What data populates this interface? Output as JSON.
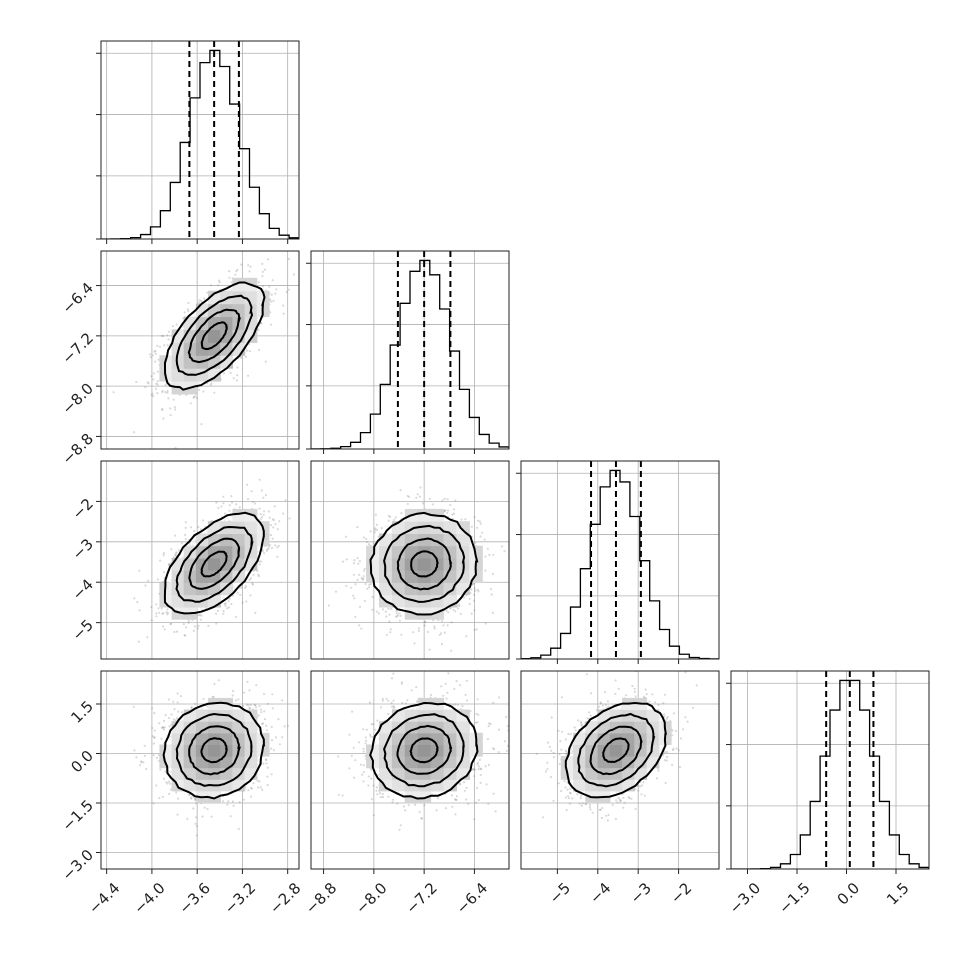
{
  "chart_data": {
    "type": "corner",
    "parameters": [
      {
        "mean": -3.45,
        "sd": 0.22,
        "ticks": [
          -4.4,
          -4.0,
          -3.6,
          -3.2,
          -2.8
        ],
        "tick_labels": [
          "−4.4",
          "−4.0",
          "−3.6",
          "−3.2",
          "−2.8"
        ],
        "range": [
          -4.45,
          -2.7
        ]
      },
      {
        "mean": -7.2,
        "sd": 0.42,
        "ticks": [
          -8.8,
          -8.0,
          -7.2,
          -6.4
        ],
        "tick_labels": [
          "−8.8",
          "−8.0",
          "−7.2",
          "−6.4"
        ],
        "range": [
          -9.0,
          -5.85
        ]
      },
      {
        "mean": -3.55,
        "sd": 0.62,
        "ticks": [
          -5,
          -4,
          -3,
          -2
        ],
        "tick_labels": [
          "−5",
          "−4",
          "−3",
          "−2"
        ],
        "range": [
          -5.9,
          -1.0
        ]
      },
      {
        "mean": 0.1,
        "sd": 0.72,
        "ticks": [
          -3.0,
          -1.5,
          0.0,
          1.5
        ],
        "tick_labels": [
          "−3.0",
          "−1.5",
          "0.0",
          "1.5"
        ],
        "range": [
          -3.5,
          2.5
        ]
      }
    ],
    "quantiles": [
      0.16,
      0.5,
      0.84
    ],
    "histogram_bins": 20,
    "correlations": [
      {
        "pair": [
          0,
          1
        ],
        "rho": 0.62
      },
      {
        "pair": [
          0,
          2
        ],
        "rho": 0.55
      },
      {
        "pair": [
          0,
          3
        ],
        "rho": 0.1
      },
      {
        "pair": [
          1,
          2
        ],
        "rho": 0.05
      },
      {
        "pair": [
          1,
          3
        ],
        "rho": 0.1
      },
      {
        "pair": [
          2,
          3
        ],
        "rho": 0.35
      }
    ],
    "grid": true,
    "colors": {
      "axis": "#222222",
      "line": "#000000",
      "grid": "#b0b0b0",
      "points": "#8a8a8a"
    }
  }
}
